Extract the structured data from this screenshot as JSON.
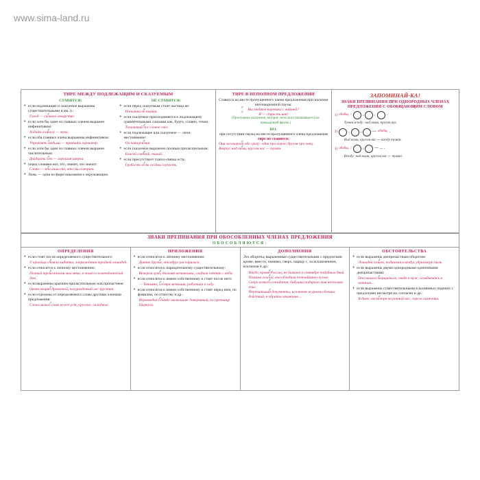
{
  "watermark": "www.sima-land.ru",
  "colors": {
    "pink": "#c2185b",
    "green": "#388e3c",
    "red": "#d32f2f",
    "border": "#999999",
    "text": "#222222"
  },
  "top": {
    "col1": {
      "title": "ТИРЕ МЕЖДУ ПОДЛЕЖАЩИМ И СКАЗУЕМЫМ",
      "left_head": "СТАВИТСЯ:",
      "right_head": "НЕ СТАВИТСЯ:",
      "left": [
        {
          "r": "если подлежащее и сказуемое выражены существительными в им. п.:",
          "e": "Голод — сильное лекарство."
        },
        {
          "r": "если хотя бы один из главных членов выражен инфинитивом:",
          "e": "Ходить в школу — мука."
        },
        {
          "r": "если оба главных члена выражены инфинитивом:",
          "e": "Управлять людьми — тратить характер."
        },
        {
          "r": "если хотя бы один из главных членов выражен числительным:",
          "e": "Двадцать лет — хорошая штука."
        },
        {
          "r": "перед словами вот, это, значит, это значит:",
          "e": "Слова — это лишь то, что мы говорим."
        },
        {
          "r": "Ложь — одна из форм наказания к окружающим."
        }
      ],
      "right": [
        {
          "r": "если перед сказуемым стоит частица не:",
          "e": "Попытка не пытка."
        },
        {
          "r": "если сказуемое присоединяется к подлежащему сравнительными союзами как, будто, словно, точно:",
          "e": "Тополиный пух словно снег."
        },
        {
          "r": "если подлежащее или сказуемое — личн. местоимение:",
          "e": "Он каторжник."
        },
        {
          "r": "если сказуемое выражено полным прилагательным:",
          "e": "Енисей гладкий, тихий."
        },
        {
          "r": "если присутствует глагол-связка есть:",
          "e": "Грубость есть особая глупость."
        }
      ]
    },
    "col2": {
      "title": "ТИРЕ В НЕПОЛНОМ ПРЕДЛОЖЕНИИ",
      "intro": "Ставится на месте пропущенного члена предложения при наличии интонационной паузы:",
      "ex1": "Вы любите вареники с вишней?",
      "ex2": "Я — страсть как!",
      "note": "(Пропущено сказуемое, которое легко восстанавливается из предыдущей фразы.)",
      "no_head": "НО:",
      "no_text": "при отсутствии паузы на месте пропущенного члена предложения",
      "no_rule": "тире не ставится:",
      "ex3": "Они заговорили обе сразу: одна про коров, другая про овец.",
      "ex4": "Вверху: над вами, кругом вас — туман."
    },
    "col3": {
      "zapom": "ЗАПОМИНАЙ-КА!",
      "title": "ЗНАКИ ПРЕПИНАНИЯ ПРИ ОДНОРОДНЫХ ЧЛЕНАХ ПРЕДЛОЖЕНИЯ С ОБОБЩАЮЩИМ СЛОВОМ",
      "scheme1_lbl": "обобщ.",
      "scheme1_cap": "Туман всюду: над вами, кругом вас.",
      "scheme2_cap": "Над вами, кругом вас — всюду туман.",
      "scheme3_cap": "Всюду: над вами, кругом вас — туман."
    }
  },
  "mid_title": "ЗНАКИ ПРЕПИНАНИЯ ПРИ ОБОСОБЛЕННЫХ ЧЛЕНАХ ПРЕДЛОЖЕНИЯ",
  "mid_sub": "ОБОСОБЛЯЮТСЯ:",
  "bottom": {
    "c1": {
      "head": "ОПРЕДЕЛЕНИЯ",
      "items": [
        {
          "r": "если стоят после определяемого существительного:",
          "e": "У крыльца стояла кибитка, запряжённая тройкой лошадей."
        },
        {
          "r": "если относятся к личному местоимению:",
          "e": "Полный тревожными мыслями, я пошёл в комендантский дом."
        },
        {
          "r": "если выражены кратким прилагательным или причастием:",
          "e": "Овеян вещею дремотой, полураздетый лес грустит."
        },
        {
          "r": "если отделены от определяемого слова другими членами предложения:",
          "e": "Слова лились сами из его уст, круглые, складные."
        }
      ]
    },
    "c2": {
      "head": "ПРИЛОЖЕНИЯ",
      "items": [
        {
          "r": "если относятся к личному местоимению:",
          "e": "Давние друзья, они вдруг рассорились."
        },
        {
          "r": "если относятся к нарицательному существительному:",
          "e": "Вечером луна, дальняя незнакомка, гладила светит с неба."
        },
        {
          "r": "если относятся к имени собственному и стоят после него:",
          "e": "— Татьяна, сестра меньшая, работала в саду."
        },
        {
          "r": "если относятся к имени собственному и стоят перед ним, по фамилии, по отчеству и др.:",
          "e": "Верховодил в банде мальчишек доверчивый, по прозвищу Цыркуль."
        }
      ]
    },
    "c3": {
      "head": "ДОПОЛНЕНИЯ",
      "intro": "Это обороты, выраженные существительными с предлогами кроме, вместо, помимо, сверх, наряду с, за исключением, исключая и др.:",
      "items": [
        {
          "e": "Нигде, кроме России, не бывает в сентябре подобных дней."
        },
        {
          "e": "Помимо голоса, она обладала тончайшим слухом."
        },
        {
          "e": "Сверх всякого ожидания, бабушка подарила нам несколько книг."
        },
        {
          "e": "Перечитывая документы, исключая журналы боевых действий, я обратил внимание..."
        }
      ]
    },
    "c4": {
      "head": "ОБСТОЯТЕЛЬСТВА",
      "items": [
        {
          "r": "если выражены деепричастным оборотом:",
          "e": "Лошадка пошла, поднимая в воздух удушливую пыль."
        },
        {
          "r": "если выражены двумя однородными одиночными деепричастиями:",
          "e": "Она начала морщиться, глядя и муж, оглядываясь и начиная..."
        },
        {
          "r": "если выражены существительными в косвенных падежах с предлогами несмотря на, согласно и др.:",
          "e": "В доме, несмотря на ранний час, горела лампочка."
        }
      ]
    }
  }
}
